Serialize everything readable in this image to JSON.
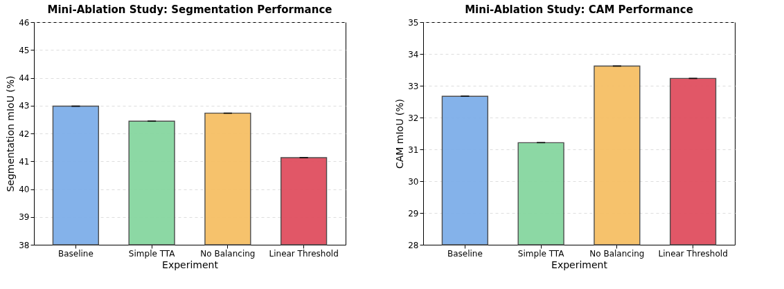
{
  "chart_data": [
    {
      "type": "bar",
      "title": "Mini-Ablation Study: Segmentation Performance",
      "xlabel": "Experiment",
      "ylabel": "Segmentation mIoU (%)",
      "categories": [
        "Baseline",
        "Simple TTA",
        "No Balancing",
        "Linear Threshold"
      ],
      "values": [
        42.98,
        42.44,
        42.73,
        41.13
      ],
      "errors": [
        0,
        0,
        0,
        0
      ],
      "colors": [
        "#7eaee9",
        "#86d6a0",
        "#f6bf65",
        "#e04f5f"
      ],
      "ylim": [
        38,
        46
      ],
      "yticks": [
        38,
        39,
        40,
        41,
        42,
        43,
        44,
        45,
        46
      ],
      "grid": "y"
    },
    {
      "type": "bar",
      "title": "Mini-Ablation Study: CAM Performance",
      "xlabel": "Experiment",
      "ylabel": "CAM mIoU (%)",
      "categories": [
        "Baseline",
        "Simple TTA",
        "No Balancing",
        "Linear Threshold"
      ],
      "values": [
        32.67,
        31.21,
        33.62,
        33.23
      ],
      "errors": [
        0,
        0,
        0,
        0
      ],
      "colors": [
        "#7eaee9",
        "#86d6a0",
        "#f6bf65",
        "#e04f5f"
      ],
      "ylim": [
        28,
        35
      ],
      "yticks": [
        28,
        29,
        30,
        31,
        32,
        33,
        34,
        35
      ],
      "grid": "y"
    }
  ]
}
